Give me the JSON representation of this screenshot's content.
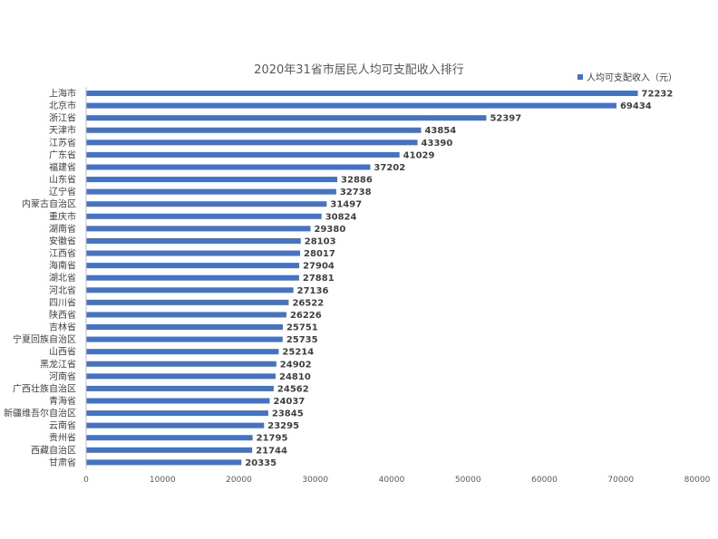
{
  "chart_data": {
    "type": "bar",
    "orientation": "horizontal",
    "title": "2020年31省市居民人均可支配收入排行",
    "xlabel": "",
    "ylabel": "",
    "xlim": [
      0,
      80000
    ],
    "x_ticks": [
      "0",
      "10000",
      "20000",
      "30000",
      "40000",
      "50000",
      "60000",
      "70000",
      "80000"
    ],
    "grid": false,
    "legend_position": "top-right",
    "bar_color": "#4472C4",
    "categories": [
      "上海市",
      "北京市",
      "浙江省",
      "天津市",
      "江苏省",
      "广东省",
      "福建省",
      "山东省",
      "辽宁省",
      "内蒙古自治区",
      "重庆市",
      "湖南省",
      "安徽省",
      "江西省",
      "海南省",
      "湖北省",
      "河北省",
      "四川省",
      "陕西省",
      "吉林省",
      "宁夏回族自治区",
      "山西省",
      "黑龙江省",
      "河南省",
      "广西壮族自治区",
      "青海省",
      "新疆维吾尔自治区",
      "云南省",
      "贵州省",
      "西藏自治区",
      "甘肃省"
    ],
    "series": [
      {
        "name": "人均可支配收入（元）",
        "values": [
          72232,
          69434,
          52397,
          43854,
          43390,
          41029,
          37202,
          32886,
          32738,
          31497,
          30824,
          29380,
          28103,
          28017,
          27904,
          27881,
          27136,
          26522,
          26226,
          25751,
          25735,
          25214,
          24902,
          24810,
          24562,
          24037,
          23845,
          23295,
          21795,
          21744,
          20335
        ]
      }
    ]
  }
}
